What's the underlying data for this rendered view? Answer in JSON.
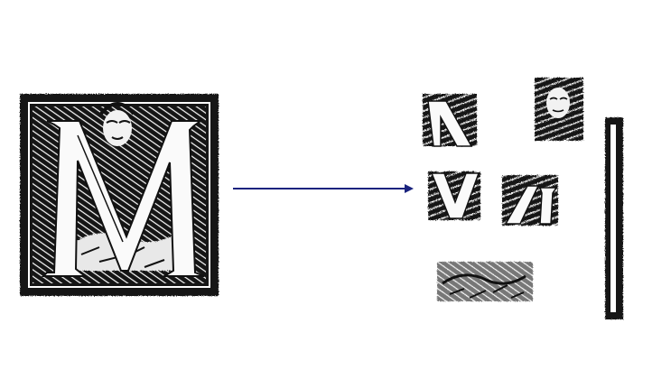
{
  "figure": {
    "source": {
      "glyph": "M",
      "kind": "woodcut-initial"
    },
    "arrow_color": "#1a237e",
    "ink_color": "#111111",
    "paper_color": "#ffffff",
    "fragments": [
      {
        "name": "fragment-top-left-stroke"
      },
      {
        "name": "fragment-face"
      },
      {
        "name": "fragment-middle-left-vertex"
      },
      {
        "name": "fragment-middle-right-stroke"
      },
      {
        "name": "fragment-hands-bottom"
      },
      {
        "name": "fragment-right-border-strip"
      }
    ]
  }
}
